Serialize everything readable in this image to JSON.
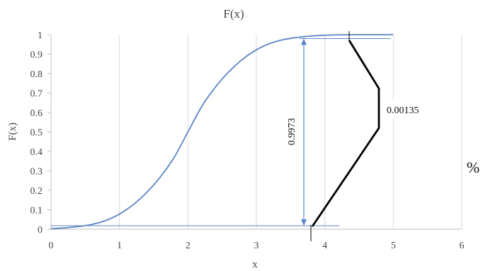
{
  "chart_data": {
    "type": "line",
    "title": "F(x)",
    "xlabel": "x",
    "ylabel": "F(x)",
    "xlim": [
      0,
      6
    ],
    "ylim": [
      0,
      1
    ],
    "x_ticks": [
      "0",
      "1",
      "2",
      "3",
      "4",
      "5",
      "6"
    ],
    "y_ticks": [
      "0",
      "0.1",
      "0.2",
      "0.3",
      "0.4",
      "0.5",
      "0.6",
      "0.7",
      "0.8",
      "0.9",
      "1"
    ],
    "grid": "vertical",
    "series": [
      {
        "name": "",
        "color": "#5b86c4",
        "x": [
          0,
          0.2,
          0.4,
          0.6,
          0.8,
          1.0,
          1.2,
          1.4,
          1.6,
          1.8,
          2.0,
          2.2,
          2.4,
          2.6,
          2.8,
          3.0,
          3.2,
          3.4,
          3.6,
          3.8,
          4.0,
          4.2,
          4.4,
          4.6,
          4.8,
          5.0
        ],
        "values": [
          0.003,
          0.007,
          0.014,
          0.025,
          0.045,
          0.078,
          0.126,
          0.19,
          0.27,
          0.37,
          0.5,
          0.63,
          0.73,
          0.81,
          0.874,
          0.922,
          0.955,
          0.975,
          0.986,
          0.993,
          0.997,
          0.999,
          1.0,
          1.0,
          1.0,
          1.0
        ]
      }
    ],
    "annotations": {
      "span_label": "0.9973",
      "tail_label": "0.00135",
      "percent_symbol": "%"
    },
    "colors": {
      "curve": "#5b86c4",
      "guide": "#5b86c4",
      "bracket": "#000000"
    }
  }
}
